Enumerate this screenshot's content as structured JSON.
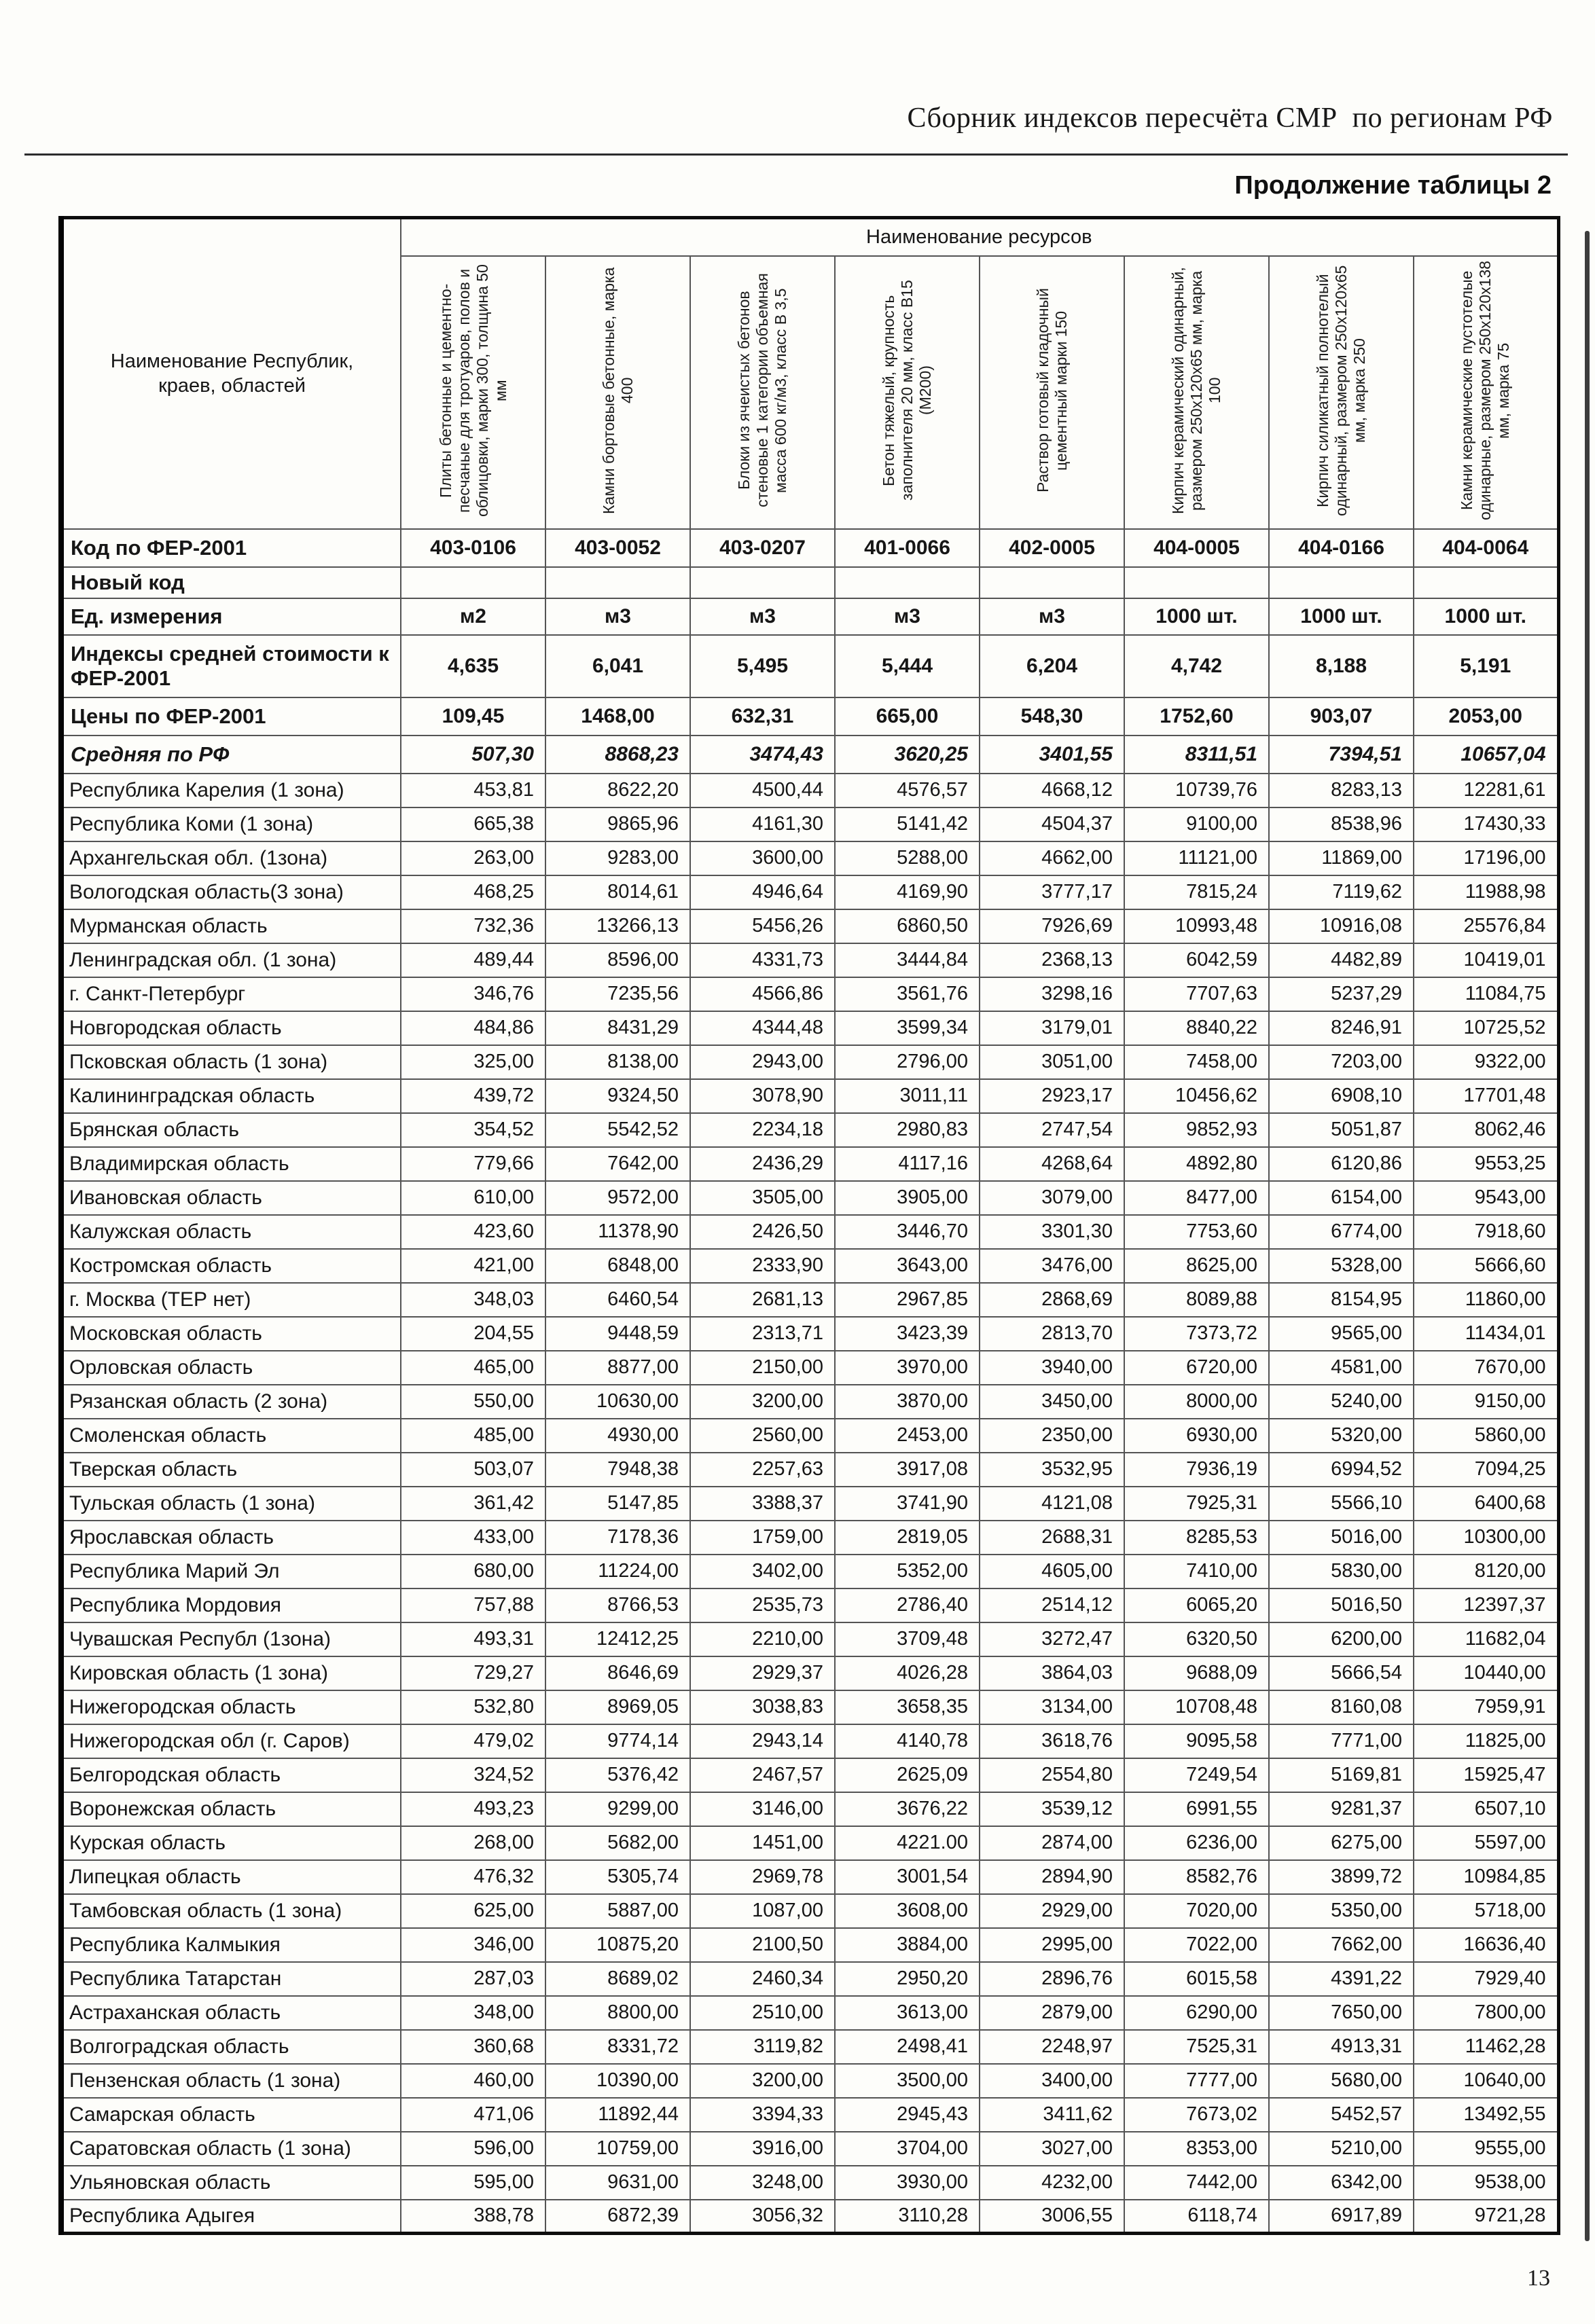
{
  "page": {
    "header_title": "Сборник индексов пересчёта СМР  по регионам РФ",
    "table_caption": "Продолжение таблицы 2",
    "page_number": "13"
  },
  "table": {
    "resources_header": "Наименование ресурсов",
    "region_col_header": "Наименование Республик, краев, областей",
    "columns": [
      "Плиты бетонные и цементно-песчаные для тротуаров, полов и облицовки, марки 300, толщина 50 мм",
      "Камни бортовые бетонные, марка 400",
      "Блоки из ячеистых бетонов стеновые 1 категории объемная масса 600 кг/м3, класс В 3,5",
      "Бетон тяжелый, крупность заполнителя 20 мм, класс В15 (М200)",
      "Раствор готовый кладочный цементный марки 150",
      "Кирпич керамический одинарный, размером 250х120х65 мм, марка 100",
      "Кирпич силикатный полнотелый одинарный, размером 250х120х65 мм, марка 250",
      "Камни керамические пустотелые одинарные, размером 250х120х138 мм, марка 75"
    ],
    "meta_rows": [
      {
        "label": "Код по ФЕР-2001",
        "variant": "code",
        "values": [
          "403-0106",
          "403-0052",
          "403-0207",
          "401-0066",
          "402-0005",
          "404-0005",
          "404-0166",
          "404-0064"
        ]
      },
      {
        "label": "Новый код",
        "variant": "newcode",
        "values": [
          "",
          "",
          "",
          "",
          "",
          "",
          "",
          ""
        ]
      },
      {
        "label": "Ед. измерения",
        "variant": "units",
        "values": [
          "м2",
          "м3",
          "м3",
          "м3",
          "м3",
          "1000 шт.",
          "1000 шт.",
          "1000 шт."
        ]
      },
      {
        "label": "Индексы средней стоимости к ФЕР-2001",
        "variant": "index",
        "values": [
          "4,635",
          "6,041",
          "5,495",
          "5,444",
          "6,204",
          "4,742",
          "8,188",
          "5,191"
        ]
      },
      {
        "label": "Цены по ФЕР-2001",
        "variant": "price",
        "values": [
          "109,45",
          "1468,00",
          "632,31",
          "665,00",
          "548,30",
          "1752,60",
          "903,07",
          "2053,00"
        ]
      },
      {
        "label": "Средняя по РФ",
        "variant": "avg",
        "values": [
          "507,30",
          "8868,23",
          "3474,43",
          "3620,25",
          "3401,55",
          "8311,51",
          "7394,51",
          "10657,04"
        ]
      }
    ],
    "rows": [
      {
        "name": "Республика Карелия (1 зона)",
        "values": [
          "453,81",
          "8622,20",
          "4500,44",
          "4576,57",
          "4668,12",
          "10739,76",
          "8283,13",
          "12281,61"
        ]
      },
      {
        "name": "Республика Коми (1 зона)",
        "values": [
          "665,38",
          "9865,96",
          "4161,30",
          "5141,42",
          "4504,37",
          "9100,00",
          "8538,96",
          "17430,33"
        ]
      },
      {
        "name": "Архангельская обл. (1зона)",
        "values": [
          "263,00",
          "9283,00",
          "3600,00",
          "5288,00",
          "4662,00",
          "11121,00",
          "11869,00",
          "17196,00"
        ]
      },
      {
        "name": "Вологодская область(3 зона)",
        "values": [
          "468,25",
          "8014,61",
          "4946,64",
          "4169,90",
          "3777,17",
          "7815,24",
          "7119,62",
          "11988,98"
        ]
      },
      {
        "name": "Мурманская область",
        "values": [
          "732,36",
          "13266,13",
          "5456,26",
          "6860,50",
          "7926,69",
          "10993,48",
          "10916,08",
          "25576,84"
        ]
      },
      {
        "name": "Ленинградская обл. (1 зона)",
        "values": [
          "489,44",
          "8596,00",
          "4331,73",
          "3444,84",
          "2368,13",
          "6042,59",
          "4482,89",
          "10419,01"
        ]
      },
      {
        "name": "г. Санкт-Петербург",
        "values": [
          "346,76",
          "7235,56",
          "4566,86",
          "3561,76",
          "3298,16",
          "7707,63",
          "5237,29",
          "11084,75"
        ]
      },
      {
        "name": "Новгородская область",
        "values": [
          "484,86",
          "8431,29",
          "4344,48",
          "3599,34",
          "3179,01",
          "8840,22",
          "8246,91",
          "10725,52"
        ]
      },
      {
        "name": "Псковская область (1 зона)",
        "values": [
          "325,00",
          "8138,00",
          "2943,00",
          "2796,00",
          "3051,00",
          "7458,00",
          "7203,00",
          "9322,00"
        ]
      },
      {
        "name": "Калининградская область",
        "values": [
          "439,72",
          "9324,50",
          "3078,90",
          "3011,11",
          "2923,17",
          "10456,62",
          "6908,10",
          "17701,48"
        ]
      },
      {
        "name": "Брянская область",
        "values": [
          "354,52",
          "5542,52",
          "2234,18",
          "2980,83",
          "2747,54",
          "9852,93",
          "5051,87",
          "8062,46"
        ]
      },
      {
        "name": "Владимирская область",
        "values": [
          "779,66",
          "7642,00",
          "2436,29",
          "4117,16",
          "4268,64",
          "4892,80",
          "6120,86",
          "9553,25"
        ]
      },
      {
        "name": "Ивановская область",
        "values": [
          "610,00",
          "9572,00",
          "3505,00",
          "3905,00",
          "3079,00",
          "8477,00",
          "6154,00",
          "9543,00"
        ]
      },
      {
        "name": "Калужская область",
        "values": [
          "423,60",
          "11378,90",
          "2426,50",
          "3446,70",
          "3301,30",
          "7753,60",
          "6774,00",
          "7918,60"
        ]
      },
      {
        "name": "Костромская область",
        "values": [
          "421,00",
          "6848,00",
          "2333,90",
          "3643,00",
          "3476,00",
          "8625,00",
          "5328,00",
          "5666,60"
        ]
      },
      {
        "name": "г. Москва (ТЕР нет)",
        "values": [
          "348,03",
          "6460,54",
          "2681,13",
          "2967,85",
          "2868,69",
          "8089,88",
          "8154,95",
          "11860,00"
        ]
      },
      {
        "name": "Московская  область",
        "values": [
          "204,55",
          "9448,59",
          "2313,71",
          "3423,39",
          "2813,70",
          "7373,72",
          "9565,00",
          "11434,01"
        ]
      },
      {
        "name": "Орловская область",
        "values": [
          "465,00",
          "8877,00",
          "2150,00",
          "3970,00",
          "3940,00",
          "6720,00",
          "4581,00",
          "7670,00"
        ]
      },
      {
        "name": "Рязанская область (2 зона)",
        "values": [
          "550,00",
          "10630,00",
          "3200,00",
          "3870,00",
          "3450,00",
          "8000,00",
          "5240,00",
          "9150,00"
        ]
      },
      {
        "name": "Смоленская область",
        "values": [
          "485,00",
          "4930,00",
          "2560,00",
          "2453,00",
          "2350,00",
          "6930,00",
          "5320,00",
          "5860,00"
        ]
      },
      {
        "name": "Тверская область",
        "values": [
          "503,07",
          "7948,38",
          "2257,63",
          "3917,08",
          "3532,95",
          "7936,19",
          "6994,52",
          "7094,25"
        ]
      },
      {
        "name": "Тульская область (1 зона)",
        "values": [
          "361,42",
          "5147,85",
          "3388,37",
          "3741,90",
          "4121,08",
          "7925,31",
          "5566,10",
          "6400,68"
        ]
      },
      {
        "name": "Ярославская область",
        "values": [
          "433,00",
          "7178,36",
          "1759,00",
          "2819,05",
          "2688,31",
          "8285,53",
          "5016,00",
          "10300,00"
        ]
      },
      {
        "name": "Республика Марий Эл",
        "values": [
          "680,00",
          "11224,00",
          "3402,00",
          "5352,00",
          "4605,00",
          "7410,00",
          "5830,00",
          "8120,00"
        ]
      },
      {
        "name": "Республика Мордовия",
        "values": [
          "757,88",
          "8766,53",
          "2535,73",
          "2786,40",
          "2514,12",
          "6065,20",
          "5016,50",
          "12397,37"
        ]
      },
      {
        "name": "Чувашская Республ (1зона)",
        "values": [
          "493,31",
          "12412,25",
          "2210,00",
          "3709,48",
          "3272,47",
          "6320,50",
          "6200,00",
          "11682,04"
        ]
      },
      {
        "name": "Кировская область (1 зона)",
        "values": [
          "729,27",
          "8646,69",
          "2929,37",
          "4026,28",
          "3864,03",
          "9688,09",
          "5666,54",
          "10440,00"
        ]
      },
      {
        "name": "Нижегородская область",
        "values": [
          "532,80",
          "8969,05",
          "3038,83",
          "3658,35",
          "3134,00",
          "10708,48",
          "8160,08",
          "7959,91"
        ]
      },
      {
        "name": "Нижегородская обл (г. Саров)",
        "values": [
          "479,02",
          "9774,14",
          "2943,14",
          "4140,78",
          "3618,76",
          "9095,58",
          "7771,00",
          "11825,00"
        ]
      },
      {
        "name": "Белгородская область",
        "values": [
          "324,52",
          "5376,42",
          "2467,57",
          "2625,09",
          "2554,80",
          "7249,54",
          "5169,81",
          "15925,47"
        ]
      },
      {
        "name": "Воронежская область",
        "values": [
          "493,23",
          "9299,00",
          "3146,00",
          "3676,22",
          "3539,12",
          "6991,55",
          "9281,37",
          "6507,10"
        ]
      },
      {
        "name": "Курская область",
        "values": [
          "268,00",
          "5682,00",
          "1451,00",
          "4221.00",
          "2874,00",
          "6236,00",
          "6275,00",
          "5597,00"
        ]
      },
      {
        "name": "Липецкая область",
        "values": [
          "476,32",
          "5305,74",
          "2969,78",
          "3001,54",
          "2894,90",
          "8582,76",
          "3899,72",
          "10984,85"
        ]
      },
      {
        "name": "Тамбовская область (1 зона)",
        "values": [
          "625,00",
          "5887,00",
          "1087,00",
          "3608,00",
          "2929,00",
          "7020,00",
          "5350,00",
          "5718,00"
        ]
      },
      {
        "name": "Республика Калмыкия",
        "values": [
          "346,00",
          "10875,20",
          "2100,50",
          "3884,00",
          "2995,00",
          "7022,00",
          "7662,00",
          "16636,40"
        ]
      },
      {
        "name": "Республика Татарстан",
        "values": [
          "287,03",
          "8689,02",
          "2460,34",
          "2950,20",
          "2896,76",
          "6015,58",
          "4391,22",
          "7929,40"
        ]
      },
      {
        "name": "Астраханская область",
        "values": [
          "348,00",
          "8800,00",
          "2510,00",
          "3613,00",
          "2879,00",
          "6290,00",
          "7650,00",
          "7800,00"
        ]
      },
      {
        "name": "Волгоградская область",
        "values": [
          "360,68",
          "8331,72",
          "3119,82",
          "2498,41",
          "2248,97",
          "7525,31",
          "4913,31",
          "11462,28"
        ]
      },
      {
        "name": "Пензенская область (1 зона)",
        "values": [
          "460,00",
          "10390,00",
          "3200,00",
          "3500,00",
          "3400,00",
          "7777,00",
          "5680,00",
          "10640,00"
        ]
      },
      {
        "name": "Самарская область",
        "values": [
          "471,06",
          "11892,44",
          "3394,33",
          "2945,43",
          "3411,62",
          "7673,02",
          "5452,57",
          "13492,55"
        ]
      },
      {
        "name": "Саратовская область (1 зона)",
        "values": [
          "596,00",
          "10759,00",
          "3916,00",
          "3704,00",
          "3027,00",
          "8353,00",
          "5210,00",
          "9555,00"
        ]
      },
      {
        "name": "Ульяновская область",
        "values": [
          "595,00",
          "9631,00",
          "3248,00",
          "3930,00",
          "4232,00",
          "7442,00",
          "6342,00",
          "9538,00"
        ]
      },
      {
        "name": "Республика Адыгея",
        "values": [
          "388,78",
          "6872,39",
          "3056,32",
          "3110,28",
          "3006,55",
          "6118,74",
          "6917,89",
          "9721,28"
        ]
      }
    ]
  }
}
